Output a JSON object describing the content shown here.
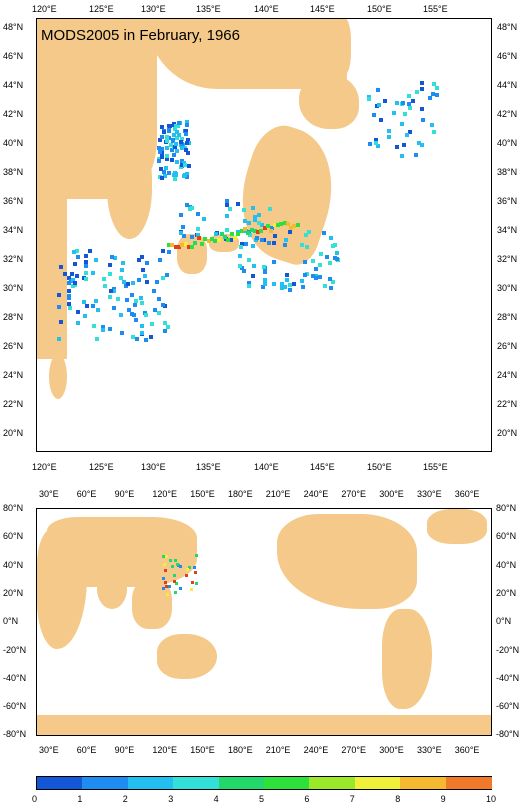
{
  "title": "MODS2005 in February, 1966",
  "top_map": {
    "x_labels": [
      "120°E",
      "125°E",
      "130°E",
      "135°E",
      "140°E",
      "145°E",
      "150°E",
      "155°E"
    ],
    "y_labels": [
      "48°N",
      "46°N",
      "44°N",
      "42°N",
      "40°N",
      "38°N",
      "36°N",
      "34°N",
      "32°N",
      "30°N",
      "28°N",
      "26°N",
      "24°N",
      "22°N",
      "20°N"
    ]
  },
  "bottom_map": {
    "x_labels": [
      "30°E",
      "60°E",
      "90°E",
      "120°E",
      "150°E",
      "180°E",
      "210°E",
      "240°E",
      "270°E",
      "300°E",
      "330°E",
      "360°E"
    ],
    "y_labels": [
      "80°N",
      "60°N",
      "40°N",
      "20°N",
      "0°N",
      "-20°N",
      "-40°N",
      "-60°N",
      "-80°N"
    ]
  },
  "colorbar": {
    "labels": [
      "0",
      "1",
      "2",
      "3",
      "4",
      "5",
      "6",
      "7",
      "8",
      "9",
      "10"
    ],
    "colors": [
      "#1457d6",
      "#1e8cf0",
      "#22bff0",
      "#33e0d8",
      "#22d86a",
      "#2ee03a",
      "#9be82a",
      "#f0f03a",
      "#f5b930",
      "#f07a2a",
      "#e0401e"
    ]
  },
  "colors": {
    "land": "#f4c98a",
    "ocean": "#ffffff"
  }
}
